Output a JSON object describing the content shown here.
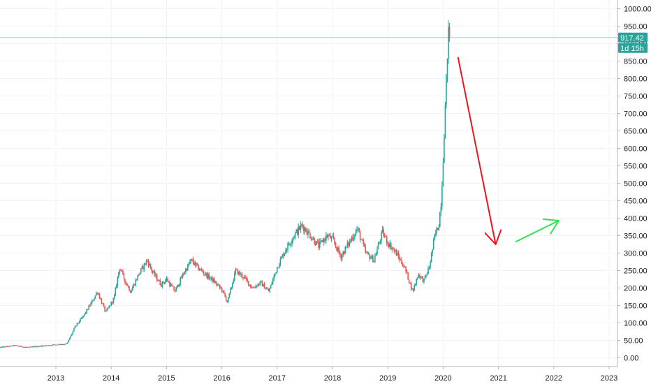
{
  "chart_data": {
    "type": "candlestick",
    "title": "",
    "xlabel": "",
    "ylabel": "",
    "x_ticks": [
      "2013",
      "2014",
      "2015",
      "2016",
      "2017",
      "2018",
      "2019",
      "2020",
      "2021",
      "2022",
      "2023"
    ],
    "y_ticks": [
      "1000.00",
      "950.00",
      "900.00",
      "850.00",
      "800.00",
      "750.00",
      "700.00",
      "650.00",
      "600.00",
      "550.00",
      "500.00",
      "450.00",
      "400.00",
      "350.00",
      "300.00",
      "250.00",
      "200.00",
      "150.00",
      "100.00",
      "50.00",
      "0.00"
    ],
    "ylim": [
      -10,
      1010
    ],
    "xlim": [
      2012.0,
      2023.1
    ],
    "last_price": "917.42",
    "countdown": "1d 15h",
    "grid": true,
    "up_color": "#26a69a",
    "down_color": "#ef5350",
    "price_line_color": "#26a69a",
    "series": [
      {
        "name": "",
        "points": [
          [
            2012.0,
            30
          ],
          [
            2012.25,
            35
          ],
          [
            2012.5,
            30
          ],
          [
            2012.75,
            34
          ],
          [
            2013.0,
            38
          ],
          [
            2013.2,
            40
          ],
          [
            2013.35,
            90
          ],
          [
            2013.5,
            120
          ],
          [
            2013.65,
            160
          ],
          [
            2013.75,
            190
          ],
          [
            2013.9,
            130
          ],
          [
            2014.05,
            170
          ],
          [
            2014.15,
            260
          ],
          [
            2014.25,
            220
          ],
          [
            2014.35,
            190
          ],
          [
            2014.5,
            240
          ],
          [
            2014.65,
            280
          ],
          [
            2014.75,
            245
          ],
          [
            2014.9,
            210
          ],
          [
            2015.0,
            225
          ],
          [
            2015.15,
            190
          ],
          [
            2015.3,
            240
          ],
          [
            2015.45,
            280
          ],
          [
            2015.55,
            260
          ],
          [
            2015.7,
            240
          ],
          [
            2015.85,
            220
          ],
          [
            2016.0,
            195
          ],
          [
            2016.1,
            160
          ],
          [
            2016.25,
            250
          ],
          [
            2016.4,
            230
          ],
          [
            2016.55,
            200
          ],
          [
            2016.7,
            215
          ],
          [
            2016.85,
            190
          ],
          [
            2017.0,
            260
          ],
          [
            2017.15,
            310
          ],
          [
            2017.3,
            350
          ],
          [
            2017.45,
            380
          ],
          [
            2017.6,
            350
          ],
          [
            2017.75,
            320
          ],
          [
            2017.9,
            350
          ],
          [
            2018.0,
            340
          ],
          [
            2018.15,
            290
          ],
          [
            2018.3,
            330
          ],
          [
            2018.45,
            370
          ],
          [
            2018.6,
            300
          ],
          [
            2018.75,
            280
          ],
          [
            2018.9,
            360
          ],
          [
            2019.0,
            330
          ],
          [
            2019.15,
            300
          ],
          [
            2019.3,
            260
          ],
          [
            2019.45,
            190
          ],
          [
            2019.55,
            240
          ],
          [
            2019.65,
            220
          ],
          [
            2019.75,
            260
          ],
          [
            2019.85,
            350
          ],
          [
            2019.92,
            380
          ],
          [
            2019.97,
            460
          ],
          [
            2020.02,
            650
          ],
          [
            2020.06,
            800
          ],
          [
            2020.09,
            930
          ],
          [
            2020.12,
            917.42
          ]
        ]
      }
    ],
    "annotations": [
      {
        "type": "arrow",
        "color": "#f0131e",
        "from": [
          2020.27,
          860
        ],
        "to": [
          2020.95,
          325
        ]
      },
      {
        "type": "arrow",
        "color": "#2fe354",
        "from": [
          2021.32,
          333
        ],
        "to": [
          2022.09,
          393
        ]
      }
    ]
  }
}
